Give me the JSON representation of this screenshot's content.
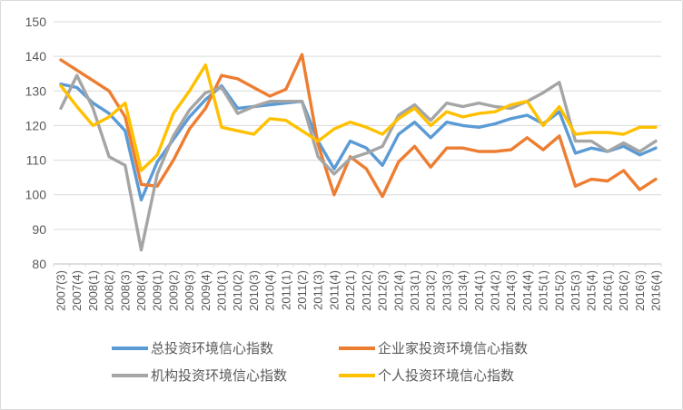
{
  "chart_data": {
    "type": "line",
    "title": "",
    "xlabel": "",
    "ylabel": "",
    "ylim": [
      80,
      150
    ],
    "yticks": [
      80,
      90,
      100,
      110,
      120,
      130,
      140,
      150
    ],
    "grid": "horizontal",
    "legend_position": "bottom",
    "categories": [
      "2007(3)",
      "2007(4)",
      "2008(1)",
      "2008(2)",
      "2008(3)",
      "2008(4)",
      "2009(1)",
      "2009(2)",
      "2009(3)",
      "2009(4)",
      "2010(1)",
      "2010(2)",
      "2010(3)",
      "2010(4)",
      "2011(1)",
      "2011(2)",
      "2011(3)",
      "2011(4)",
      "2012(1)",
      "2012(2)",
      "2012(3)",
      "2012(4)",
      "2013(1)",
      "2013(2)",
      "2013(3)",
      "2013(4)",
      "2014(1)",
      "2014(2)",
      "2014(3)",
      "2014(4)",
      "2015(1)",
      "2015(2)",
      "2015(3)",
      "2015(4)",
      "2016(1)",
      "2016(2)",
      "2016(3)",
      "2016(4)"
    ],
    "series": [
      {
        "name": "总投资环境信心指数",
        "color": "#5B9BD5",
        "values": [
          132,
          131,
          126.5,
          123.5,
          118.5,
          98.5,
          109.5,
          116,
          122.5,
          127.5,
          131.5,
          125,
          125.5,
          126,
          126.5,
          127,
          115.5,
          107.5,
          115.5,
          113.5,
          108.5,
          117.5,
          121,
          116.5,
          121,
          120,
          119.5,
          120.5,
          122,
          123,
          120.5,
          124,
          112,
          113.5,
          112.5,
          114,
          111.5,
          113.5
        ]
      },
      {
        "name": "企业家投资环境信心指数",
        "color": "#ED7D31",
        "values": [
          139,
          136,
          133,
          130,
          122.5,
          103,
          102.5,
          110,
          119,
          125,
          134.5,
          133.5,
          131,
          128.5,
          130.5,
          140.5,
          114.5,
          100,
          111,
          107.5,
          99.5,
          109.5,
          114,
          108,
          113.5,
          113.5,
          112.5,
          112.5,
          113,
          116.5,
          113,
          117,
          102.5,
          104.5,
          104,
          107,
          101.5,
          104.5
        ]
      },
      {
        "name": "机构投资环境信心指数",
        "color": "#A5A5A5",
        "values": [
          125,
          134.5,
          125,
          111,
          108.5,
          84,
          106,
          117,
          124.5,
          129.5,
          131,
          123.5,
          125.5,
          127,
          127,
          127,
          111,
          106,
          110.5,
          112,
          114,
          123,
          126,
          121.5,
          126.5,
          125.5,
          126.5,
          125.5,
          125,
          127,
          129.5,
          132.5,
          115.5,
          115.5,
          112.5,
          115,
          112.5,
          115.5
        ]
      },
      {
        "name": "个人投资环境信心指数",
        "color": "#FFC000",
        "values": [
          131.5,
          125.5,
          120,
          122.5,
          126.5,
          107,
          111.5,
          123.5,
          130,
          137.5,
          119.5,
          118.5,
          117.5,
          122,
          121.5,
          118.5,
          115.5,
          119,
          121,
          119.5,
          117.5,
          122,
          125,
          120,
          124,
          122.5,
          123.5,
          124,
          126,
          127,
          120,
          125.5,
          117.5,
          118,
          118,
          117.5,
          119.5,
          119.5
        ]
      }
    ]
  },
  "style": {
    "background": "#FFFFFF",
    "border_color": "#D9D9D9",
    "grid_color": "#D9D9D9",
    "axis_line_color": "#BFBFBF",
    "axis_text_color": "#595959",
    "legend_text_color": "#595959"
  }
}
